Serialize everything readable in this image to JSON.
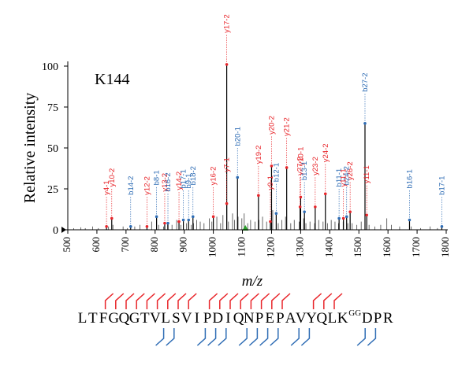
{
  "chart_data": {
    "type": "bar",
    "panel_label": "K144",
    "xlabel": "m/z",
    "ylabel": "Relative intensity",
    "xlim": [
      500,
      1800
    ],
    "ylim": [
      0,
      100
    ],
    "xticks": [
      500,
      600,
      700,
      800,
      900,
      1000,
      1100,
      1200,
      1300,
      1400,
      1500,
      1600,
      1700,
      1800
    ],
    "yticks": [
      0,
      25,
      50,
      75,
      100
    ],
    "colors": {
      "y_ion": "#e8262b",
      "b_ion": "#2f6db5",
      "peak": "#000000",
      "marker": "#2aa02a"
    },
    "background_peaks": [
      [
        520,
        1
      ],
      [
        545,
        1.5
      ],
      [
        560,
        1
      ],
      [
        585,
        2
      ],
      [
        605,
        1
      ],
      [
        640,
        2
      ],
      [
        655,
        3
      ],
      [
        690,
        2
      ],
      [
        705,
        1
      ],
      [
        730,
        2
      ],
      [
        748,
        3
      ],
      [
        772,
        2
      ],
      [
        788,
        5
      ],
      [
        812,
        3
      ],
      [
        829,
        2
      ],
      [
        843,
        4
      ],
      [
        858,
        3
      ],
      [
        874,
        6
      ],
      [
        889,
        3
      ],
      [
        897,
        5
      ],
      [
        908,
        4
      ],
      [
        924,
        3
      ],
      [
        932,
        4
      ],
      [
        943,
        6
      ],
      [
        955,
        5
      ],
      [
        968,
        4
      ],
      [
        986,
        7
      ],
      [
        995,
        5
      ],
      [
        1012,
        8
      ],
      [
        1025,
        4
      ],
      [
        1033,
        9
      ],
      [
        1052,
        5
      ],
      [
        1066,
        10
      ],
      [
        1073,
        6
      ],
      [
        1085,
        8
      ],
      [
        1098,
        7
      ],
      [
        1106,
        10
      ],
      [
        1118,
        4
      ],
      [
        1128,
        6
      ],
      [
        1143,
        5
      ],
      [
        1157,
        6
      ],
      [
        1169,
        8
      ],
      [
        1183,
        5
      ],
      [
        1204,
        12
      ],
      [
        1223,
        4
      ],
      [
        1235,
        6
      ],
      [
        1248,
        8
      ],
      [
        1266,
        4
      ],
      [
        1278,
        6
      ],
      [
        1295,
        5
      ],
      [
        1310,
        7
      ],
      [
        1318,
        4
      ],
      [
        1332,
        5
      ],
      [
        1348,
        4
      ],
      [
        1362,
        6
      ],
      [
        1377,
        5
      ],
      [
        1392,
        4
      ],
      [
        1405,
        6
      ],
      [
        1418,
        5
      ],
      [
        1430,
        4
      ],
      [
        1446,
        5
      ],
      [
        1462,
        4
      ],
      [
        1477,
        4
      ],
      [
        1493,
        3
      ],
      [
        1508,
        5
      ],
      [
        1535,
        3
      ],
      [
        1555,
        2
      ],
      [
        1575,
        3
      ],
      [
        1596,
        7
      ],
      [
        1612,
        3
      ],
      [
        1640,
        2
      ],
      [
        1680,
        2
      ],
      [
        1712,
        1
      ],
      [
        1745,
        2
      ],
      [
        1770,
        1
      ]
    ],
    "annotated_peaks": [
      {
        "label": "y17-2",
        "x": 1046,
        "y": 101,
        "ion": "y"
      },
      {
        "label": "b27-2",
        "x": 1521,
        "y": 65,
        "ion": "b"
      },
      {
        "label": "y20-2",
        "x": 1200,
        "y": 39,
        "ion": "y"
      },
      {
        "label": "y21-2",
        "x": 1252,
        "y": 38,
        "ion": "y"
      },
      {
        "label": "b20-1",
        "x": 1083,
        "y": 32,
        "ion": "b"
      },
      {
        "label": "y19-2",
        "x": 1155,
        "y": 21,
        "ion": "y"
      },
      {
        "label": "y10-1",
        "x": 1300,
        "y": 20,
        "ion": "y"
      },
      {
        "label": "y24-2",
        "x": 1385,
        "y": 22,
        "ion": "y"
      },
      {
        "label": "y23-2",
        "x": 1350,
        "y": 14,
        "ion": "y"
      },
      {
        "label": "y27-2",
        "x": 1298,
        "y": 14,
        "ion": "y"
      },
      {
        "label": "y7-1",
        "x": 1046,
        "y": 16,
        "ion": "y"
      },
      {
        "label": "b12-1",
        "x": 1216,
        "y": 10,
        "ion": "b"
      },
      {
        "label": "y9-1",
        "x": 1196,
        "y": 5,
        "ion": "y"
      },
      {
        "label": "b13-1",
        "x": 1313,
        "y": 11,
        "ion": "b"
      },
      {
        "label": "b11-1",
        "x": 1432,
        "y": 7,
        "ion": "b"
      },
      {
        "label": "y26-2",
        "x": 1470,
        "y": 11,
        "ion": "y"
      },
      {
        "label": "b24-2",
        "x": 1458,
        "y": 8,
        "ion": "b"
      },
      {
        "label": "y11-1",
        "x": 1447,
        "y": 7,
        "ion": "y"
      },
      {
        "label": "y11-1",
        "x": 1527,
        "y": 9,
        "ion": "y"
      },
      {
        "label": "y16-2",
        "x": 1000,
        "y": 8,
        "ion": "y"
      },
      {
        "label": "b18-2",
        "x": 930,
        "y": 8,
        "ion": "b"
      },
      {
        "label": "b9-1",
        "x": 915,
        "y": 6,
        "ion": "b"
      },
      {
        "label": "b17-1",
        "x": 897,
        "y": 6,
        "ion": "b"
      },
      {
        "label": "y14-2",
        "x": 882,
        "y": 5,
        "ion": "y"
      },
      {
        "label": "y13-2",
        "x": 833,
        "y": 4,
        "ion": "y"
      },
      {
        "label": "b16-2",
        "x": 844,
        "y": 4,
        "ion": "b"
      },
      {
        "label": "b8-1",
        "x": 805,
        "y": 8,
        "ion": "b"
      },
      {
        "label": "y12-2",
        "x": 772,
        "y": 2,
        "ion": "y"
      },
      {
        "label": "b14-2",
        "x": 716,
        "y": 2,
        "ion": "b"
      },
      {
        "label": "y10-2",
        "x": 651,
        "y": 7,
        "ion": "y"
      },
      {
        "label": "y4-1",
        "x": 633,
        "y": 2,
        "ion": "y"
      },
      {
        "label": "b16-1",
        "x": 1674,
        "y": 6,
        "ion": "b"
      },
      {
        "label": "b17-1",
        "x": 1785,
        "y": 2,
        "ion": "b"
      }
    ],
    "precursor_marker_x": 1110
  },
  "sequence": {
    "residues": [
      "L",
      "T",
      "F",
      "G",
      "Q",
      "G",
      "T",
      "V",
      "L",
      "S",
      "V",
      "I",
      "P",
      "D",
      "I",
      "Q",
      "N",
      "P",
      "E",
      "P",
      "A",
      "V",
      "Y",
      "Q",
      "L",
      "K",
      "GG",
      "D",
      "P",
      "R"
    ],
    "y_breaks": [
      3,
      4,
      5,
      6,
      7,
      8,
      9,
      10,
      11,
      13,
      14,
      15,
      16,
      17,
      18,
      19,
      20,
      23,
      24,
      25
    ],
    "b_breaks": [
      8,
      9,
      12,
      13,
      14,
      16,
      17,
      18,
      19,
      21,
      22,
      27,
      28
    ]
  }
}
